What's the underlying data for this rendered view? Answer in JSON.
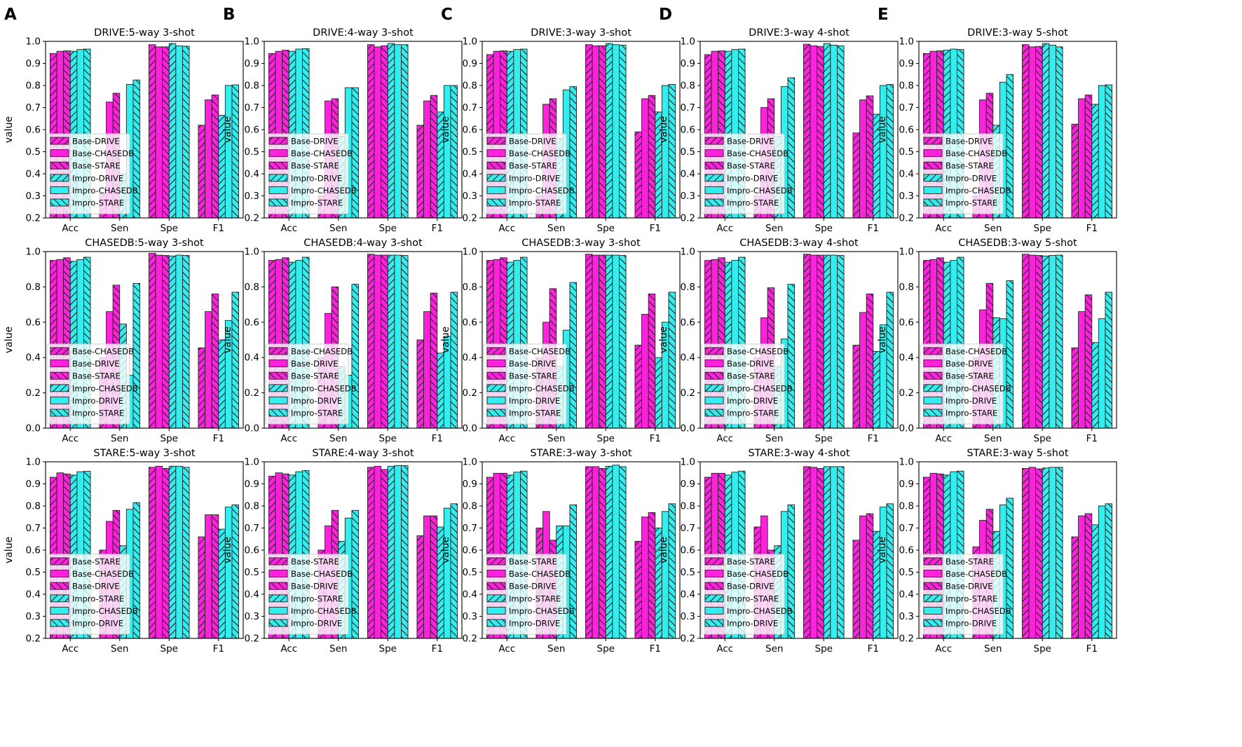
{
  "figure": {
    "panel_letters": [
      "A",
      "B",
      "C",
      "D",
      "E"
    ]
  },
  "colors": {
    "base": "#ff22dd",
    "impro": "#33eeee",
    "edge": "#222222"
  },
  "hatches": [
    "//",
    "",
    "\\\\",
    "//",
    "",
    "\\\\"
  ],
  "common": {
    "ylabel": "value",
    "categories": [
      "Acc",
      "Sen",
      "Spe",
      "F1"
    ]
  },
  "chart_data": [
    {
      "type": "bar",
      "title": "DRIVE:5-way 3-shot",
      "ylim": [
        0.2,
        1.0
      ],
      "yticks": [
        "0.2",
        "0.3",
        "0.4",
        "0.5",
        "0.6",
        "0.7",
        "0.8",
        "0.9",
        "1.0"
      ],
      "series": [
        {
          "name": "Base-DRIVE",
          "values": [
            0.945,
            0.31,
            0.985,
            0.62
          ]
        },
        {
          "name": "Base-CHASEDB",
          "values": [
            0.955,
            0.725,
            0.975,
            0.735
          ]
        },
        {
          "name": "Base-STARE",
          "values": [
            0.957,
            0.765,
            0.975,
            0.757
          ]
        },
        {
          "name": "Impro-DRIVE",
          "values": [
            0.955,
            0.4,
            0.99,
            0.665
          ]
        },
        {
          "name": "Impro-CHASEDB",
          "values": [
            0.963,
            0.805,
            0.98,
            0.8
          ]
        },
        {
          "name": "Impro-STARE",
          "values": [
            0.965,
            0.825,
            0.978,
            0.803
          ]
        }
      ]
    },
    {
      "type": "bar",
      "title": "DRIVE:4-way 3-shot",
      "ylim": [
        0.2,
        1.0
      ],
      "yticks": [
        "0.2",
        "0.3",
        "0.4",
        "0.5",
        "0.6",
        "0.7",
        "0.8",
        "0.9",
        "1.0"
      ],
      "series": [
        {
          "name": "Base-DRIVE",
          "values": [
            0.945,
            0.3,
            0.985,
            0.62
          ]
        },
        {
          "name": "Base-CHASEDB",
          "values": [
            0.955,
            0.73,
            0.975,
            0.73
          ]
        },
        {
          "name": "Base-STARE",
          "values": [
            0.96,
            0.74,
            0.98,
            0.755
          ]
        },
        {
          "name": "Impro-DRIVE",
          "values": [
            0.955,
            0.57,
            0.99,
            0.68
          ]
        },
        {
          "name": "Impro-CHASEDB",
          "values": [
            0.965,
            0.79,
            0.985,
            0.8
          ]
        },
        {
          "name": "Impro-STARE",
          "values": [
            0.967,
            0.79,
            0.985,
            0.8
          ]
        }
      ]
    },
    {
      "type": "bar",
      "title": "DRIVE:3-way 3-shot",
      "ylim": [
        0.2,
        1.0
      ],
      "yticks": [
        "0.2",
        "0.3",
        "0.4",
        "0.5",
        "0.6",
        "0.7",
        "0.8",
        "0.9",
        "1.0"
      ],
      "series": [
        {
          "name": "Base-DRIVE",
          "values": [
            0.94,
            0.3,
            0.985,
            0.59
          ]
        },
        {
          "name": "Base-CHASEDB",
          "values": [
            0.955,
            0.715,
            0.98,
            0.74
          ]
        },
        {
          "name": "Base-STARE",
          "values": [
            0.957,
            0.74,
            0.98,
            0.755
          ]
        },
        {
          "name": "Impro-DRIVE",
          "values": [
            0.955,
            0.56,
            0.99,
            0.68
          ]
        },
        {
          "name": "Impro-CHASEDB",
          "values": [
            0.963,
            0.78,
            0.985,
            0.8
          ]
        },
        {
          "name": "Impro-STARE",
          "values": [
            0.965,
            0.795,
            0.983,
            0.805
          ]
        }
      ]
    },
    {
      "type": "bar",
      "title": "DRIVE:3-way 4-shot",
      "ylim": [
        0.2,
        1.0
      ],
      "yticks": [
        "0.2",
        "0.3",
        "0.4",
        "0.5",
        "0.6",
        "0.7",
        "0.8",
        "0.9",
        "1.0"
      ],
      "series": [
        {
          "name": "Base-DRIVE",
          "values": [
            0.94,
            0.3,
            0.987,
            0.585
          ]
        },
        {
          "name": "Base-CHASEDB",
          "values": [
            0.955,
            0.7,
            0.98,
            0.735
          ]
        },
        {
          "name": "Base-STARE",
          "values": [
            0.957,
            0.74,
            0.977,
            0.753
          ]
        },
        {
          "name": "Impro-DRIVE",
          "values": [
            0.955,
            0.57,
            0.99,
            0.67
          ]
        },
        {
          "name": "Impro-CHASEDB",
          "values": [
            0.963,
            0.795,
            0.983,
            0.8
          ]
        },
        {
          "name": "Impro-STARE",
          "values": [
            0.965,
            0.835,
            0.98,
            0.805
          ]
        }
      ]
    },
    {
      "type": "bar",
      "title": "DRIVE:3-way 5-shot",
      "ylim": [
        0.2,
        1.0
      ],
      "yticks": [
        "0.2",
        "0.3",
        "0.4",
        "0.5",
        "0.6",
        "0.7",
        "0.8",
        "0.9",
        "1.0"
      ],
      "series": [
        {
          "name": "Base-DRIVE",
          "values": [
            0.945,
            0.3,
            0.985,
            0.625
          ]
        },
        {
          "name": "Base-CHASEDB",
          "values": [
            0.955,
            0.735,
            0.975,
            0.74
          ]
        },
        {
          "name": "Base-STARE",
          "values": [
            0.957,
            0.765,
            0.977,
            0.757
          ]
        },
        {
          "name": "Impro-DRIVE",
          "values": [
            0.96,
            0.62,
            0.99,
            0.715
          ]
        },
        {
          "name": "Impro-CHASEDB",
          "values": [
            0.965,
            0.815,
            0.983,
            0.8
          ]
        },
        {
          "name": "Impro-STARE",
          "values": [
            0.963,
            0.85,
            0.975,
            0.803
          ]
        }
      ]
    },
    {
      "type": "bar",
      "title": "CHASEDB:5-way 3-shot",
      "ylim": [
        0.0,
        1.0
      ],
      "yticks": [
        "0.0",
        "0.2",
        "0.4",
        "0.6",
        "0.8",
        "1.0"
      ],
      "series": [
        {
          "name": "Base-CHASEDB",
          "values": [
            0.95,
            0.4,
            0.99,
            0.455
          ]
        },
        {
          "name": "Base-DRIVE",
          "values": [
            0.955,
            0.66,
            0.98,
            0.66
          ]
        },
        {
          "name": "Base-STARE",
          "values": [
            0.965,
            0.81,
            0.978,
            0.76
          ]
        },
        {
          "name": "Impro-CHASEDB",
          "values": [
            0.945,
            0.59,
            0.975,
            0.5
          ]
        },
        {
          "name": "Impro-DRIVE",
          "values": [
            0.955,
            0.3,
            0.98,
            0.61
          ]
        },
        {
          "name": "Impro-STARE",
          "values": [
            0.968,
            0.82,
            0.978,
            0.77
          ]
        }
      ]
    },
    {
      "type": "bar",
      "title": "CHASEDB:4-way 3-shot",
      "ylim": [
        0.0,
        1.0
      ],
      "yticks": [
        "0.0",
        "0.2",
        "0.4",
        "0.6",
        "0.8",
        "1.0"
      ],
      "series": [
        {
          "name": "Base-CHASEDB",
          "values": [
            0.95,
            0.4,
            0.985,
            0.5
          ]
        },
        {
          "name": "Base-DRIVE",
          "values": [
            0.955,
            0.65,
            0.98,
            0.66
          ]
        },
        {
          "name": "Base-STARE",
          "values": [
            0.965,
            0.8,
            0.98,
            0.765
          ]
        },
        {
          "name": "Impro-CHASEDB",
          "values": [
            0.94,
            0.35,
            0.98,
            0.425
          ]
        },
        {
          "name": "Impro-DRIVE",
          "values": [
            0.95,
            0.3,
            0.98,
            0.52
          ]
        },
        {
          "name": "Impro-STARE",
          "values": [
            0.968,
            0.815,
            0.978,
            0.77
          ]
        }
      ]
    },
    {
      "type": "bar",
      "title": "CHASEDB:3-way 3-shot",
      "ylim": [
        0.0,
        1.0
      ],
      "yticks": [
        "0.0",
        "0.2",
        "0.4",
        "0.6",
        "0.8",
        "1.0"
      ],
      "series": [
        {
          "name": "Base-CHASEDB",
          "values": [
            0.95,
            0.4,
            0.985,
            0.47
          ]
        },
        {
          "name": "Base-DRIVE",
          "values": [
            0.955,
            0.6,
            0.98,
            0.645
          ]
        },
        {
          "name": "Base-STARE",
          "values": [
            0.965,
            0.79,
            0.98,
            0.76
          ]
        },
        {
          "name": "Impro-CHASEDB",
          "values": [
            0.94,
            0.35,
            0.98,
            0.4
          ]
        },
        {
          "name": "Impro-DRIVE",
          "values": [
            0.95,
            0.555,
            0.98,
            0.6
          ]
        },
        {
          "name": "Impro-STARE",
          "values": [
            0.968,
            0.825,
            0.978,
            0.77
          ]
        }
      ]
    },
    {
      "type": "bar",
      "title": "CHASEDB:3-way 4-shot",
      "ylim": [
        0.0,
        1.0
      ],
      "yticks": [
        "0.0",
        "0.2",
        "0.4",
        "0.6",
        "0.8",
        "1.0"
      ],
      "series": [
        {
          "name": "Base-CHASEDB",
          "values": [
            0.95,
            0.4,
            0.985,
            0.47
          ]
        },
        {
          "name": "Base-DRIVE",
          "values": [
            0.955,
            0.625,
            0.98,
            0.655
          ]
        },
        {
          "name": "Base-STARE",
          "values": [
            0.965,
            0.795,
            0.98,
            0.76
          ]
        },
        {
          "name": "Impro-CHASEDB",
          "values": [
            0.94,
            0.35,
            0.98,
            0.435
          ]
        },
        {
          "name": "Impro-DRIVE",
          "values": [
            0.95,
            0.505,
            0.98,
            0.585
          ]
        },
        {
          "name": "Impro-STARE",
          "values": [
            0.968,
            0.815,
            0.978,
            0.77
          ]
        }
      ]
    },
    {
      "type": "bar",
      "title": "CHASEDB:3-way 5-shot",
      "ylim": [
        0.0,
        1.0
      ],
      "yticks": [
        "0.0",
        "0.2",
        "0.4",
        "0.6",
        "0.8",
        "1.0"
      ],
      "series": [
        {
          "name": "Base-CHASEDB",
          "values": [
            0.95,
            0.4,
            0.985,
            0.455
          ]
        },
        {
          "name": "Base-DRIVE",
          "values": [
            0.955,
            0.67,
            0.98,
            0.66
          ]
        },
        {
          "name": "Base-STARE",
          "values": [
            0.965,
            0.82,
            0.978,
            0.755
          ]
        },
        {
          "name": "Impro-CHASEDB",
          "values": [
            0.94,
            0.625,
            0.975,
            0.485
          ]
        },
        {
          "name": "Impro-DRIVE",
          "values": [
            0.95,
            0.62,
            0.978,
            0.62
          ]
        },
        {
          "name": "Impro-STARE",
          "values": [
            0.968,
            0.835,
            0.98,
            0.77
          ]
        }
      ]
    },
    {
      "type": "bar",
      "title": "STARE:5-way 3-shot",
      "ylim": [
        0.2,
        1.0
      ],
      "yticks": [
        "0.2",
        "0.3",
        "0.4",
        "0.5",
        "0.6",
        "0.7",
        "0.8",
        "0.9",
        "1.0"
      ],
      "series": [
        {
          "name": "Base-STARE",
          "values": [
            0.93,
            0.6,
            0.975,
            0.66
          ]
        },
        {
          "name": "Base-CHASEDB",
          "values": [
            0.95,
            0.73,
            0.98,
            0.76
          ]
        },
        {
          "name": "Base-DRIVE",
          "values": [
            0.945,
            0.78,
            0.97,
            0.76
          ]
        },
        {
          "name": "Impro-STARE",
          "values": [
            0.94,
            0.62,
            0.98,
            0.695
          ]
        },
        {
          "name": "Impro-CHASEDB",
          "values": [
            0.955,
            0.785,
            0.98,
            0.795
          ]
        },
        {
          "name": "Impro-DRIVE",
          "values": [
            0.957,
            0.815,
            0.975,
            0.805
          ]
        }
      ]
    },
    {
      "type": "bar",
      "title": "STARE:4-way 3-shot",
      "ylim": [
        0.2,
        1.0
      ],
      "yticks": [
        "0.2",
        "0.3",
        "0.4",
        "0.5",
        "0.6",
        "0.7",
        "0.8",
        "0.9",
        "1.0"
      ],
      "series": [
        {
          "name": "Base-STARE",
          "values": [
            0.935,
            0.6,
            0.975,
            0.665
          ]
        },
        {
          "name": "Base-CHASEDB",
          "values": [
            0.95,
            0.71,
            0.98,
            0.755
          ]
        },
        {
          "name": "Base-DRIVE",
          "values": [
            0.945,
            0.78,
            0.965,
            0.755
          ]
        },
        {
          "name": "Impro-STARE",
          "values": [
            0.94,
            0.64,
            0.98,
            0.705
          ]
        },
        {
          "name": "Impro-CHASEDB",
          "values": [
            0.955,
            0.745,
            0.983,
            0.79
          ]
        },
        {
          "name": "Impro-DRIVE",
          "values": [
            0.96,
            0.78,
            0.983,
            0.81
          ]
        }
      ]
    },
    {
      "type": "bar",
      "title": "STARE:3-way 3-shot",
      "ylim": [
        0.2,
        1.0
      ],
      "yticks": [
        "0.2",
        "0.3",
        "0.4",
        "0.5",
        "0.6",
        "0.7",
        "0.8",
        "0.9",
        "1.0"
      ],
      "series": [
        {
          "name": "Base-STARE",
          "values": [
            0.93,
            0.7,
            0.978,
            0.64
          ]
        },
        {
          "name": "Base-CHASEDB",
          "values": [
            0.948,
            0.775,
            0.978,
            0.75
          ]
        },
        {
          "name": "Base-DRIVE",
          "values": [
            0.948,
            0.645,
            0.97,
            0.77
          ]
        },
        {
          "name": "Impro-STARE",
          "values": [
            0.94,
            0.71,
            0.98,
            0.7
          ]
        },
        {
          "name": "Impro-CHASEDB",
          "values": [
            0.953,
            0.71,
            0.985,
            0.775
          ]
        },
        {
          "name": "Impro-DRIVE",
          "values": [
            0.958,
            0.805,
            0.978,
            0.81
          ]
        }
      ]
    },
    {
      "type": "bar",
      "title": "STARE:3-way 4-shot",
      "ylim": [
        0.2,
        1.0
      ],
      "yticks": [
        "0.2",
        "0.3",
        "0.4",
        "0.5",
        "0.6",
        "0.7",
        "0.8",
        "0.9",
        "1.0"
      ],
      "series": [
        {
          "name": "Base-STARE",
          "values": [
            0.93,
            0.705,
            0.978,
            0.645
          ]
        },
        {
          "name": "Base-CHASEDB",
          "values": [
            0.948,
            0.755,
            0.975,
            0.755
          ]
        },
        {
          "name": "Base-DRIVE",
          "values": [
            0.948,
            0.6,
            0.97,
            0.765
          ]
        },
        {
          "name": "Impro-STARE",
          "values": [
            0.94,
            0.62,
            0.978,
            0.685
          ]
        },
        {
          "name": "Impro-CHASEDB",
          "values": [
            0.953,
            0.775,
            0.978,
            0.795
          ]
        },
        {
          "name": "Impro-DRIVE",
          "values": [
            0.958,
            0.805,
            0.978,
            0.81
          ]
        }
      ]
    },
    {
      "type": "bar",
      "title": "STARE:3-way 5-shot",
      "ylim": [
        0.2,
        1.0
      ],
      "yticks": [
        "0.2",
        "0.3",
        "0.4",
        "0.5",
        "0.6",
        "0.7",
        "0.8",
        "0.9",
        "1.0"
      ],
      "series": [
        {
          "name": "Base-STARE",
          "values": [
            0.93,
            0.615,
            0.97,
            0.66
          ]
        },
        {
          "name": "Base-CHASEDB",
          "values": [
            0.948,
            0.735,
            0.975,
            0.755
          ]
        },
        {
          "name": "Base-DRIVE",
          "values": [
            0.945,
            0.785,
            0.968,
            0.765
          ]
        },
        {
          "name": "Impro-STARE",
          "values": [
            0.94,
            0.685,
            0.972,
            0.715
          ]
        },
        {
          "name": "Impro-CHASEDB",
          "values": [
            0.955,
            0.805,
            0.975,
            0.8
          ]
        },
        {
          "name": "Impro-DRIVE",
          "values": [
            0.958,
            0.835,
            0.975,
            0.81
          ]
        }
      ]
    }
  ]
}
